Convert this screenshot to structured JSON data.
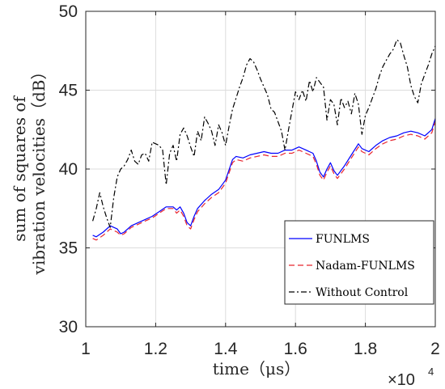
{
  "chart_data": {
    "type": "line",
    "title": "",
    "xlabel": "time（μs）",
    "ylabel_lines": [
      "sum of squares of",
      "vibration velocities（dB）"
    ],
    "x_multiplier": "×10",
    "x_multiplier_exp": "4",
    "xlim": [
      1,
      2
    ],
    "ylim": [
      30,
      50
    ],
    "x_ticks": [
      1,
      1.2,
      1.4,
      1.6,
      1.8,
      2
    ],
    "x_tick_labels": [
      "1",
      "1.2",
      "1.4",
      "1.6",
      "1.8",
      "2"
    ],
    "y_ticks": [
      30,
      35,
      40,
      45,
      50
    ],
    "y_tick_labels": [
      "30",
      "35",
      "40",
      "45",
      "50"
    ],
    "grid": true,
    "legend_position": "lower-right",
    "series": [
      {
        "name": "FUNLMS",
        "color": "#0000ff",
        "dash": "solid",
        "x": [
          1.02,
          1.03,
          1.05,
          1.07,
          1.09,
          1.1,
          1.11,
          1.13,
          1.15,
          1.17,
          1.19,
          1.21,
          1.23,
          1.25,
          1.26,
          1.27,
          1.28,
          1.29,
          1.3,
          1.31,
          1.32,
          1.34,
          1.36,
          1.38,
          1.4,
          1.42,
          1.43,
          1.45,
          1.47,
          1.49,
          1.51,
          1.53,
          1.55,
          1.57,
          1.59,
          1.61,
          1.63,
          1.65,
          1.66,
          1.67,
          1.68,
          1.69,
          1.7,
          1.71,
          1.72,
          1.74,
          1.76,
          1.78,
          1.79,
          1.81,
          1.83,
          1.85,
          1.87,
          1.89,
          1.91,
          1.93,
          1.95,
          1.97,
          1.99,
          2.0
        ],
        "y": [
          35.8,
          35.7,
          36.0,
          36.4,
          36.2,
          35.9,
          36.0,
          36.4,
          36.6,
          36.8,
          37.0,
          37.3,
          37.6,
          37.6,
          37.4,
          37.6,
          37.2,
          36.6,
          36.4,
          37.0,
          37.5,
          38.0,
          38.4,
          38.7,
          39.3,
          40.6,
          40.8,
          40.7,
          40.9,
          41.0,
          41.1,
          41.0,
          41.0,
          41.2,
          41.2,
          41.4,
          41.2,
          41.0,
          40.5,
          39.8,
          39.5,
          40.0,
          40.4,
          39.9,
          39.6,
          40.2,
          40.9,
          41.6,
          41.3,
          41.1,
          41.5,
          41.8,
          42.0,
          42.1,
          42.3,
          42.4,
          42.3,
          42.1,
          42.5,
          43.2
        ]
      },
      {
        "name": "Nadam-FUNLMS",
        "color": "#e8262f",
        "dash": "dashed",
        "x": [
          1.02,
          1.03,
          1.05,
          1.07,
          1.09,
          1.1,
          1.11,
          1.13,
          1.15,
          1.17,
          1.19,
          1.21,
          1.23,
          1.25,
          1.26,
          1.27,
          1.28,
          1.29,
          1.3,
          1.31,
          1.32,
          1.34,
          1.36,
          1.38,
          1.4,
          1.42,
          1.43,
          1.45,
          1.47,
          1.49,
          1.51,
          1.53,
          1.55,
          1.57,
          1.59,
          1.61,
          1.63,
          1.65,
          1.66,
          1.67,
          1.68,
          1.69,
          1.7,
          1.71,
          1.72,
          1.74,
          1.76,
          1.78,
          1.79,
          1.81,
          1.83,
          1.85,
          1.87,
          1.89,
          1.91,
          1.93,
          1.95,
          1.97,
          1.99,
          2.0
        ],
        "y": [
          35.6,
          35.5,
          35.8,
          36.2,
          36.0,
          35.8,
          35.9,
          36.3,
          36.5,
          36.7,
          36.9,
          37.2,
          37.5,
          37.5,
          37.2,
          37.4,
          37.0,
          36.4,
          36.2,
          36.8,
          37.3,
          37.8,
          38.2,
          38.5,
          39.1,
          40.4,
          40.6,
          40.5,
          40.7,
          40.8,
          40.9,
          40.8,
          40.8,
          41.0,
          41.0,
          41.2,
          41.0,
          40.8,
          40.3,
          39.6,
          39.3,
          39.8,
          40.2,
          39.7,
          39.4,
          40.0,
          40.7,
          41.4,
          41.1,
          40.9,
          41.3,
          41.6,
          41.8,
          41.9,
          42.1,
          42.2,
          42.1,
          41.9,
          42.3,
          43.0
        ]
      },
      {
        "name": "Without Control",
        "color": "#000000",
        "dash": "dashdot",
        "x": [
          1.02,
          1.03,
          1.04,
          1.05,
          1.06,
          1.07,
          1.08,
          1.09,
          1.1,
          1.11,
          1.12,
          1.13,
          1.14,
          1.15,
          1.16,
          1.17,
          1.18,
          1.19,
          1.2,
          1.21,
          1.22,
          1.23,
          1.24,
          1.25,
          1.26,
          1.27,
          1.28,
          1.29,
          1.3,
          1.31,
          1.32,
          1.33,
          1.34,
          1.35,
          1.36,
          1.37,
          1.38,
          1.39,
          1.4,
          1.41,
          1.42,
          1.43,
          1.44,
          1.45,
          1.46,
          1.47,
          1.48,
          1.49,
          1.5,
          1.51,
          1.52,
          1.53,
          1.54,
          1.55,
          1.56,
          1.57,
          1.58,
          1.59,
          1.6,
          1.61,
          1.62,
          1.63,
          1.64,
          1.65,
          1.66,
          1.67,
          1.68,
          1.69,
          1.7,
          1.71,
          1.72,
          1.73,
          1.74,
          1.75,
          1.76,
          1.77,
          1.78,
          1.79,
          1.8,
          1.81,
          1.82,
          1.83,
          1.84,
          1.85,
          1.86,
          1.87,
          1.88,
          1.89,
          1.9,
          1.91,
          1.92,
          1.93,
          1.94,
          1.95,
          1.96,
          1.97,
          1.98,
          1.99,
          2.0
        ],
        "y": [
          36.7,
          37.5,
          38.5,
          37.6,
          36.9,
          36.3,
          38.2,
          39.5,
          40.0,
          40.2,
          40.6,
          41.2,
          40.5,
          40.3,
          40.9,
          41.0,
          40.5,
          41.7,
          41.6,
          41.5,
          41.2,
          39.0,
          41.0,
          41.5,
          40.5,
          42.2,
          42.6,
          42.1,
          41.4,
          40.8,
          42.4,
          41.8,
          43.3,
          42.9,
          42.4,
          41.5,
          42.8,
          42.3,
          41.5,
          42.7,
          43.8,
          44.5,
          45.2,
          45.8,
          46.6,
          47.0,
          46.8,
          46.3,
          45.7,
          45.2,
          44.7,
          43.8,
          43.6,
          43.0,
          42.4,
          41.2,
          42.5,
          43.7,
          44.9,
          44.4,
          45.0,
          44.3,
          45.6,
          44.9,
          45.8,
          45.5,
          45.2,
          43.1,
          44.4,
          44.1,
          42.8,
          44.5,
          43.9,
          44.3,
          43.5,
          44.8,
          44.1,
          42.2,
          43.4,
          43.9,
          44.5,
          45.1,
          45.9,
          46.5,
          46.9,
          47.3,
          47.6,
          48.2,
          48.0,
          47.2,
          46.5,
          45.3,
          44.6,
          44.2,
          45.4,
          46.0,
          46.6,
          47.3,
          47.8
        ]
      }
    ]
  }
}
